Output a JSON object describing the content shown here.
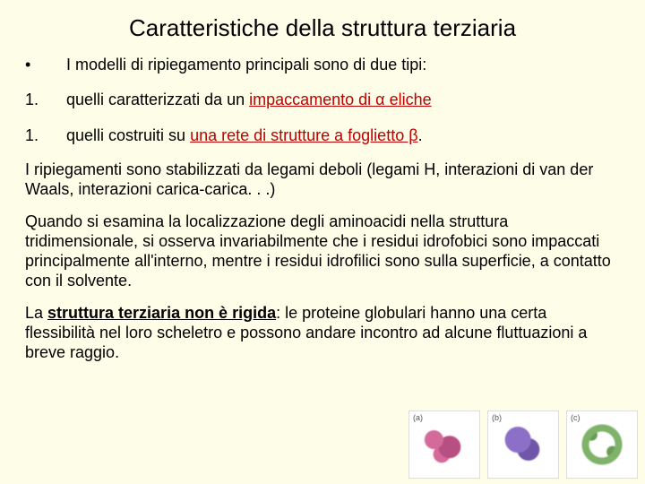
{
  "title": "Caratteristiche della struttura terziaria",
  "list": {
    "b1": {
      "marker": "•",
      "text": "I modelli di ripiegamento principali sono di due tipi:"
    },
    "b2": {
      "marker": "1.",
      "pre": "quelli caratterizzati da un ",
      "red": "impaccamento di α eliche"
    },
    "b3": {
      "marker": "1.",
      "pre": "quelli costruiti su ",
      "red": "una rete di strutture a foglietto β",
      "post": "."
    }
  },
  "para1": "I ripiegamenti sono stabilizzati da legami deboli (legami H, interazioni di van der Waals, interazioni carica-carica. . .)",
  "para2": "Quando si esamina la localizzazione degli aminoacidi nella struttura tridimensionale, si osserva invariabilmente che i residui idrofobici sono impaccati principalmente all'interno, mentre i residui idrofilici sono sulla superficie, a contatto con il solvente.",
  "para3_pre": "La ",
  "para3_bold": "struttura terziaria non è rigida",
  "para3_post": ": le proteine globulari hanno una certa flessibilità nel loro scheletro e possono andare incontro ad alcune fluttuazioni a breve raggio.",
  "fig_labels": {
    "a": "(a)",
    "b": "(b)",
    "c": "(c)"
  }
}
